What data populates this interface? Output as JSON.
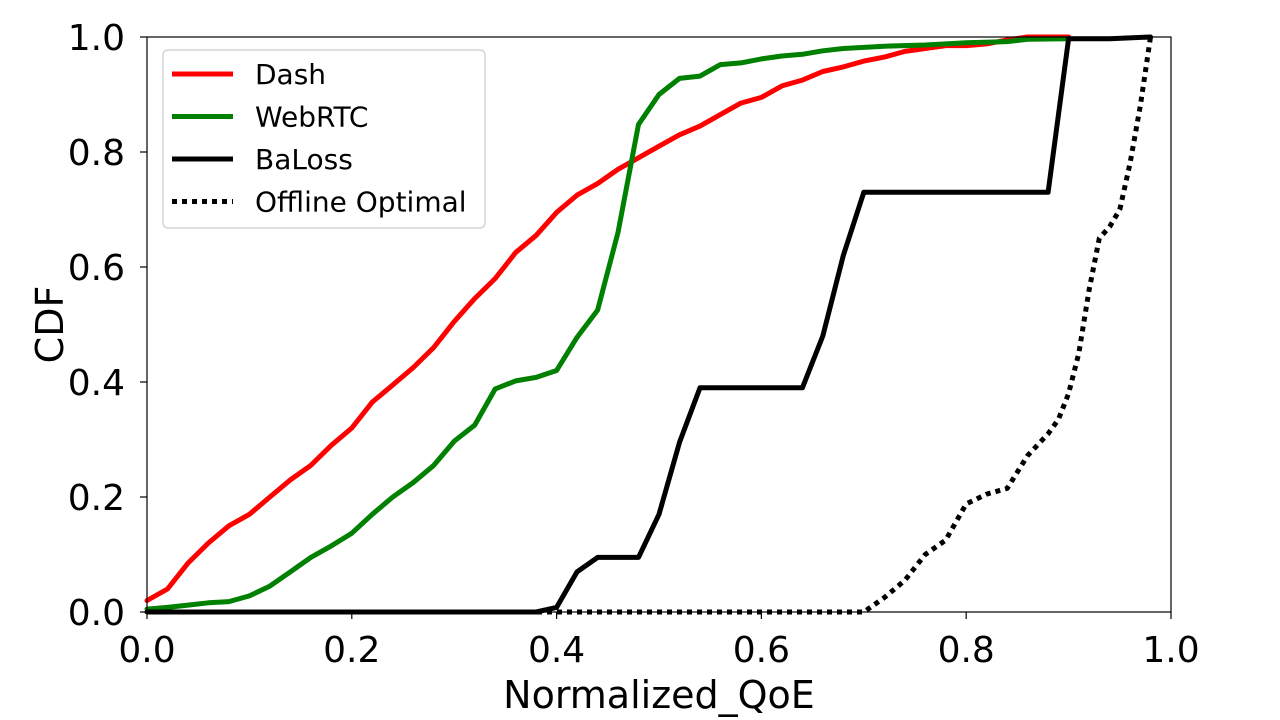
{
  "chart_data": {
    "type": "line",
    "xlabel": "Normalized_QoE",
    "ylabel": "CDF",
    "xlim": [
      0.0,
      1.0
    ],
    "ylim": [
      0.0,
      1.0
    ],
    "xticks": [
      "0.0",
      "0.2",
      "0.4",
      "0.6",
      "0.8",
      "1.0"
    ],
    "yticks": [
      "0.0",
      "0.2",
      "0.4",
      "0.6",
      "0.8",
      "1.0"
    ],
    "grid": false,
    "legend_position": "top-left",
    "series": [
      {
        "name": "Dash",
        "color": "#ff0000",
        "style": "solid",
        "points": [
          [
            0.0,
            0.02
          ],
          [
            0.02,
            0.04
          ],
          [
            0.04,
            0.085
          ],
          [
            0.06,
            0.12
          ],
          [
            0.08,
            0.15
          ],
          [
            0.1,
            0.17
          ],
          [
            0.12,
            0.2
          ],
          [
            0.14,
            0.23
          ],
          [
            0.16,
            0.255
          ],
          [
            0.18,
            0.29
          ],
          [
            0.2,
            0.32
          ],
          [
            0.22,
            0.365
          ],
          [
            0.24,
            0.395
          ],
          [
            0.26,
            0.425
          ],
          [
            0.28,
            0.46
          ],
          [
            0.3,
            0.505
          ],
          [
            0.32,
            0.545
          ],
          [
            0.34,
            0.58
          ],
          [
            0.36,
            0.625
          ],
          [
            0.38,
            0.655
          ],
          [
            0.4,
            0.695
          ],
          [
            0.42,
            0.725
          ],
          [
            0.44,
            0.745
          ],
          [
            0.46,
            0.77
          ],
          [
            0.48,
            0.79
          ],
          [
            0.5,
            0.81
          ],
          [
            0.52,
            0.83
          ],
          [
            0.54,
            0.845
          ],
          [
            0.56,
            0.865
          ],
          [
            0.58,
            0.885
          ],
          [
            0.6,
            0.895
          ],
          [
            0.62,
            0.915
          ],
          [
            0.64,
            0.925
          ],
          [
            0.66,
            0.94
          ],
          [
            0.68,
            0.948
          ],
          [
            0.7,
            0.958
          ],
          [
            0.72,
            0.965
          ],
          [
            0.74,
            0.975
          ],
          [
            0.76,
            0.98
          ],
          [
            0.78,
            0.985
          ],
          [
            0.8,
            0.985
          ],
          [
            0.82,
            0.988
          ],
          [
            0.84,
            0.995
          ],
          [
            0.86,
            1.0
          ],
          [
            0.9,
            1.0
          ]
        ]
      },
      {
        "name": "WebRTC",
        "color": "#008000",
        "style": "solid",
        "points": [
          [
            0.0,
            0.005
          ],
          [
            0.02,
            0.008
          ],
          [
            0.04,
            0.012
          ],
          [
            0.06,
            0.016
          ],
          [
            0.08,
            0.018
          ],
          [
            0.1,
            0.028
          ],
          [
            0.12,
            0.045
          ],
          [
            0.14,
            0.07
          ],
          [
            0.16,
            0.095
          ],
          [
            0.18,
            0.115
          ],
          [
            0.2,
            0.137
          ],
          [
            0.22,
            0.17
          ],
          [
            0.24,
            0.2
          ],
          [
            0.26,
            0.225
          ],
          [
            0.28,
            0.255
          ],
          [
            0.3,
            0.297
          ],
          [
            0.32,
            0.325
          ],
          [
            0.34,
            0.388
          ],
          [
            0.36,
            0.402
          ],
          [
            0.38,
            0.408
          ],
          [
            0.4,
            0.42
          ],
          [
            0.42,
            0.478
          ],
          [
            0.44,
            0.525
          ],
          [
            0.46,
            0.66
          ],
          [
            0.48,
            0.848
          ],
          [
            0.5,
            0.9
          ],
          [
            0.52,
            0.928
          ],
          [
            0.54,
            0.932
          ],
          [
            0.56,
            0.952
          ],
          [
            0.58,
            0.955
          ],
          [
            0.6,
            0.962
          ],
          [
            0.62,
            0.967
          ],
          [
            0.64,
            0.97
          ],
          [
            0.66,
            0.976
          ],
          [
            0.68,
            0.98
          ],
          [
            0.7,
            0.982
          ],
          [
            0.72,
            0.984
          ],
          [
            0.76,
            0.986
          ],
          [
            0.8,
            0.99
          ],
          [
            0.84,
            0.992
          ],
          [
            0.86,
            0.996
          ],
          [
            0.9,
            0.997
          ]
        ]
      },
      {
        "name": "BaLoss",
        "color": "#000000",
        "style": "solid",
        "points": [
          [
            0.0,
            0.0
          ],
          [
            0.38,
            0.0
          ],
          [
            0.4,
            0.008
          ],
          [
            0.42,
            0.07
          ],
          [
            0.44,
            0.095
          ],
          [
            0.48,
            0.095
          ],
          [
            0.5,
            0.17
          ],
          [
            0.52,
            0.295
          ],
          [
            0.54,
            0.39
          ],
          [
            0.64,
            0.39
          ],
          [
            0.66,
            0.48
          ],
          [
            0.68,
            0.62
          ],
          [
            0.7,
            0.73
          ],
          [
            0.88,
            0.73
          ],
          [
            0.9,
            0.997
          ],
          [
            0.94,
            0.997
          ],
          [
            0.98,
            1.0
          ]
        ]
      },
      {
        "name": "Offline Optimal",
        "color": "#000000",
        "style": "dotted",
        "points": [
          [
            0.0,
            0.0
          ],
          [
            0.7,
            0.0
          ],
          [
            0.72,
            0.025
          ],
          [
            0.74,
            0.055
          ],
          [
            0.76,
            0.1
          ],
          [
            0.78,
            0.125
          ],
          [
            0.8,
            0.188
          ],
          [
            0.82,
            0.205
          ],
          [
            0.84,
            0.215
          ],
          [
            0.86,
            0.272
          ],
          [
            0.88,
            0.31
          ],
          [
            0.89,
            0.335
          ],
          [
            0.9,
            0.38
          ],
          [
            0.91,
            0.45
          ],
          [
            0.92,
            0.56
          ],
          [
            0.93,
            0.65
          ],
          [
            0.94,
            0.67
          ],
          [
            0.95,
            0.7
          ],
          [
            0.96,
            0.78
          ],
          [
            0.97,
            0.88
          ],
          [
            0.98,
            1.0
          ]
        ]
      }
    ]
  }
}
